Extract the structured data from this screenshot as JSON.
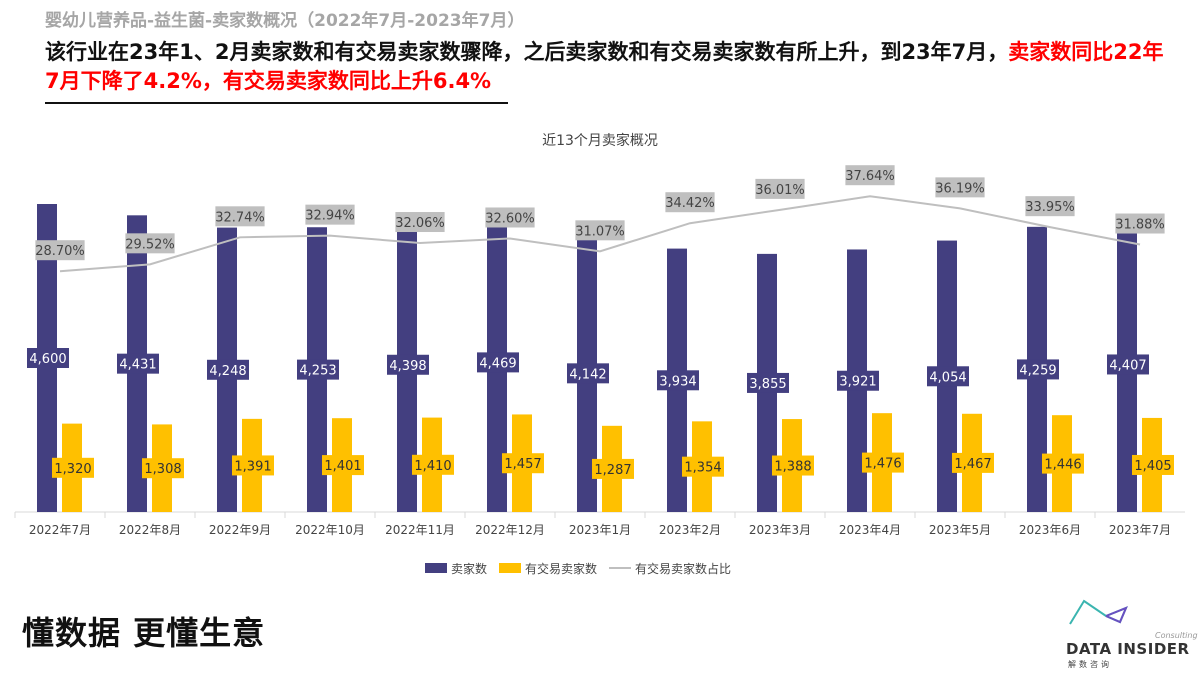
{
  "header": {
    "title": "婴幼儿营养品-益生菌-卖家数概况（2022年7月-2023年7月）",
    "summary_black": "该行业在23年1、2月卖家数和有交易卖家数骤降，之后卖家数和有交易卖家数有所上升，到23年7月，",
    "summary_red": "卖家数同比22年7月下降了4.2%，有交易卖家数同比上升6.4%"
  },
  "footer": {
    "slogan": "懂数据 更懂生意",
    "logo_text": "DATA INSIDER",
    "logo_sub": "Consulting",
    "logo_cn": "解数咨询"
  },
  "colors": {
    "sellers": "#433f80",
    "trading": "#ffc000",
    "ratio": "#bfbfbf"
  },
  "chart_data": {
    "type": "bar",
    "title": "近13个月卖家概况",
    "categories": [
      "2022年7月",
      "2022年8月",
      "2022年9月",
      "2022年10月",
      "2022年11月",
      "2022年12月",
      "2023年1月",
      "2023年2月",
      "2023年3月",
      "2023年4月",
      "2023年5月",
      "2023年6月",
      "2023年7月"
    ],
    "series": [
      {
        "name": "卖家数",
        "type": "bar",
        "values": [
          4600,
          4431,
          4248,
          4253,
          4398,
          4469,
          4142,
          3934,
          3855,
          3921,
          4054,
          4259,
          4407
        ],
        "labels": [
          "4,600",
          "4,431",
          "4,248",
          "4,253",
          "4,398",
          "4,469",
          "4,142",
          "3,934",
          "3,855",
          "3,921",
          "4,054",
          "4,259",
          "4,407"
        ]
      },
      {
        "name": "有交易卖家数",
        "type": "bar",
        "values": [
          1320,
          1308,
          1391,
          1401,
          1410,
          1457,
          1287,
          1354,
          1388,
          1476,
          1467,
          1446,
          1405
        ],
        "labels": [
          "1,320",
          "1,308",
          "1,391",
          "1,401",
          "1,410",
          "1,457",
          "1,287",
          "1,354",
          "1,388",
          "1,476",
          "1,467",
          "1,446",
          "1,405"
        ]
      },
      {
        "name": "有交易卖家数占比",
        "type": "line",
        "values": [
          28.7,
          29.52,
          32.74,
          32.94,
          32.06,
          32.6,
          31.07,
          34.42,
          36.01,
          37.64,
          36.19,
          33.95,
          31.88
        ],
        "labels": [
          "28.70%",
          "29.52%",
          "32.74%",
          "32.94%",
          "32.06%",
          "32.60%",
          "31.07%",
          "34.42%",
          "36.01%",
          "37.64%",
          "36.19%",
          "33.95%",
          "31.88%"
        ]
      }
    ],
    "grid": false,
    "legend": "bottom"
  }
}
